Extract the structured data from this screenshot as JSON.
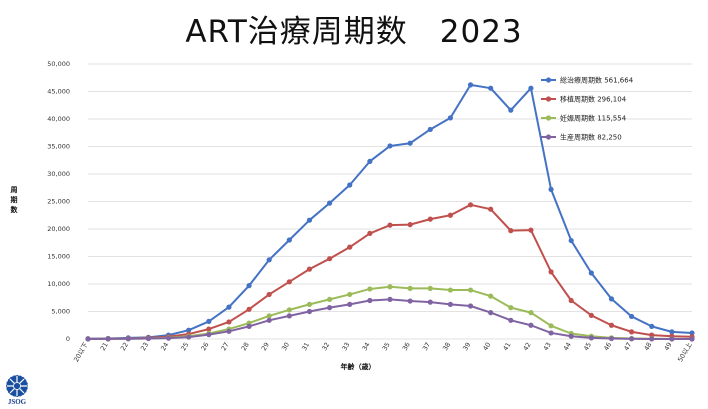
{
  "title": "ART治療周期数　2023",
  "chart_data": {
    "type": "line",
    "title": "ART治療周期数　2023",
    "xlabel": "年齢（歳）",
    "ylabel": "周期数",
    "ylim": [
      0,
      50000
    ],
    "yticks": [
      0,
      5000,
      10000,
      15000,
      20000,
      25000,
      30000,
      35000,
      40000,
      45000,
      50000
    ],
    "ytick_labels": [
      "0",
      "5,000",
      "10,000",
      "15,000",
      "20,000",
      "25,000",
      "30,000",
      "35,000",
      "40,000",
      "45,000",
      "50,000"
    ],
    "grid": true,
    "legend_position": "top-right",
    "categories": [
      "20以下",
      "21",
      "22",
      "23",
      "24",
      "25",
      "26",
      "27",
      "28",
      "29",
      "30",
      "31",
      "32",
      "33",
      "34",
      "35",
      "36",
      "37",
      "38",
      "39",
      "40",
      "41",
      "42",
      "43",
      "44",
      "45",
      "46",
      "47",
      "48",
      "49",
      "50以上"
    ],
    "series": [
      {
        "name": "総治療周期数 561,664",
        "color": "#4472c4",
        "values": [
          50,
          100,
          200,
          300,
          700,
          1600,
          3200,
          5800,
          9700,
          14400,
          18000,
          21600,
          24700,
          28000,
          32300,
          35100,
          35600,
          38100,
          40200,
          46200,
          45600,
          41600,
          45600,
          27200,
          17900,
          12000,
          7300,
          4100,
          2300,
          1300,
          1100
        ]
      },
      {
        "name": "移植周期数 296,104",
        "color": "#c0504d",
        "values": [
          20,
          50,
          100,
          200,
          400,
          900,
          1800,
          3100,
          5400,
          8100,
          10400,
          12700,
          14600,
          16700,
          19200,
          20700,
          20800,
          21800,
          22500,
          24400,
          23600,
          19700,
          19800,
          12200,
          7000,
          4300,
          2500,
          1300,
          700,
          500,
          400
        ]
      },
      {
        "name": "妊娠周期数 115,554",
        "color": "#9bbb59",
        "values": [
          10,
          20,
          50,
          100,
          200,
          500,
          1000,
          1800,
          2900,
          4200,
          5300,
          6300,
          7200,
          8100,
          9100,
          9500,
          9200,
          9200,
          8900,
          8900,
          7800,
          5700,
          4800,
          2400,
          1000,
          500,
          200,
          100,
          50,
          20,
          10
        ]
      },
      {
        "name": "生産周期数 82,250",
        "color": "#8064a2",
        "values": [
          10,
          20,
          40,
          80,
          150,
          350,
          800,
          1400,
          2300,
          3400,
          4200,
          5000,
          5700,
          6300,
          7000,
          7200,
          6900,
          6700,
          6300,
          6000,
          4800,
          3400,
          2500,
          1100,
          500,
          200,
          80,
          30,
          10,
          5,
          0
        ]
      }
    ]
  },
  "logo": {
    "label": "JSOG"
  }
}
